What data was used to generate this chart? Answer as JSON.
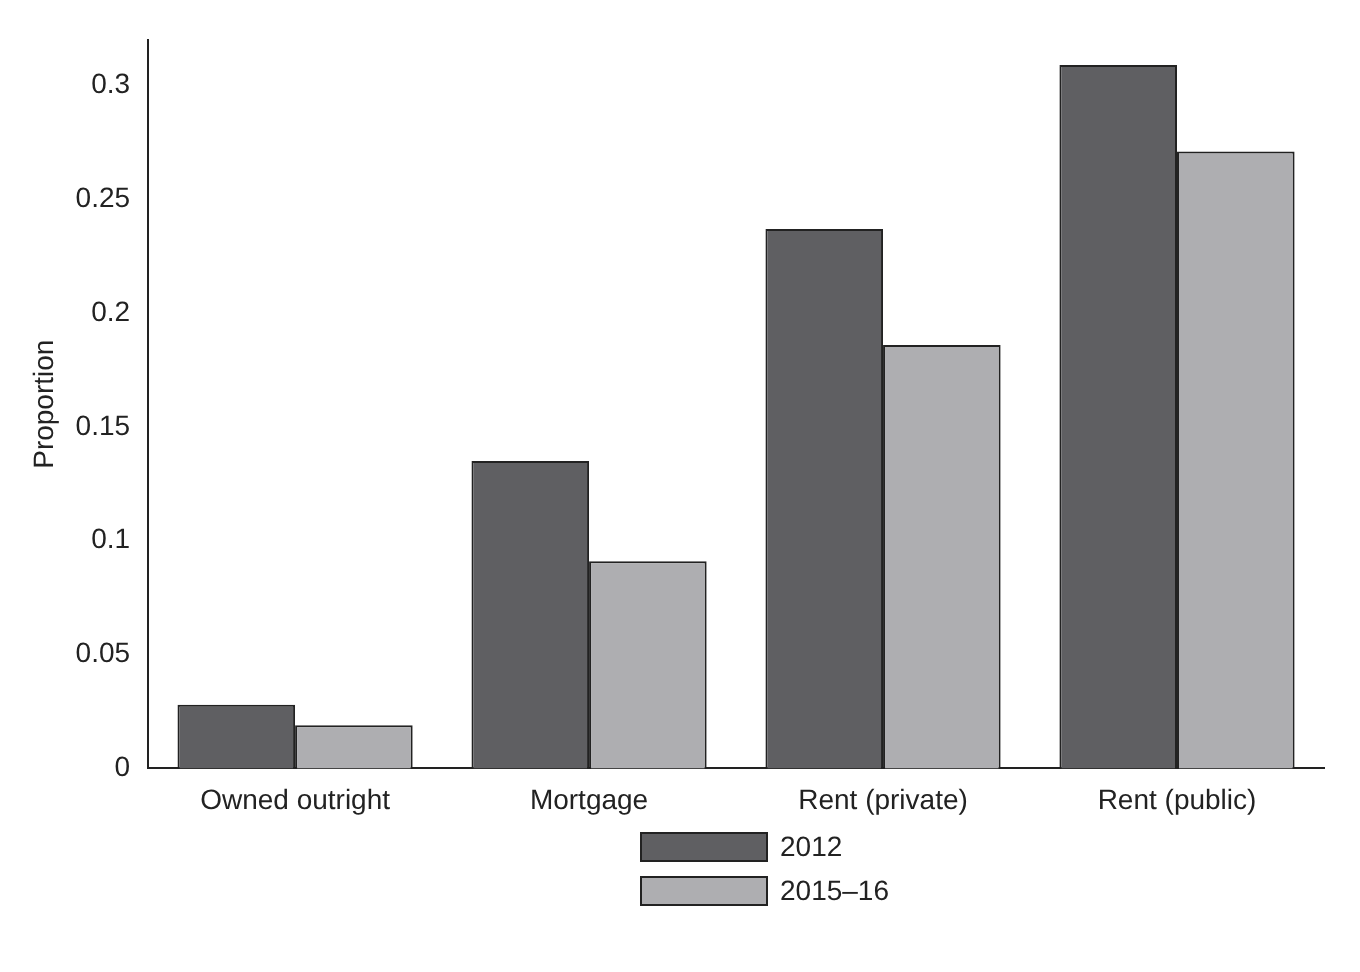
{
  "chart_data": {
    "type": "bar",
    "ylabel": "Proportion",
    "categories": [
      "Owned outright",
      "Mortgage",
      "Rent (private)",
      "Rent (public)"
    ],
    "series": [
      {
        "name": "2012",
        "color": "#5f5f62",
        "values": [
          0.028,
          0.135,
          0.237,
          0.309
        ]
      },
      {
        "name": "2015–16",
        "color": "#aeaeb1",
        "values": [
          0.019,
          0.091,
          0.186,
          0.271
        ]
      }
    ],
    "ylim": [
      0,
      0.32
    ],
    "yticks": [
      0,
      0.05,
      0.1,
      0.15,
      0.2,
      0.25,
      0.3
    ],
    "grid": false,
    "legend": "bottom"
  }
}
